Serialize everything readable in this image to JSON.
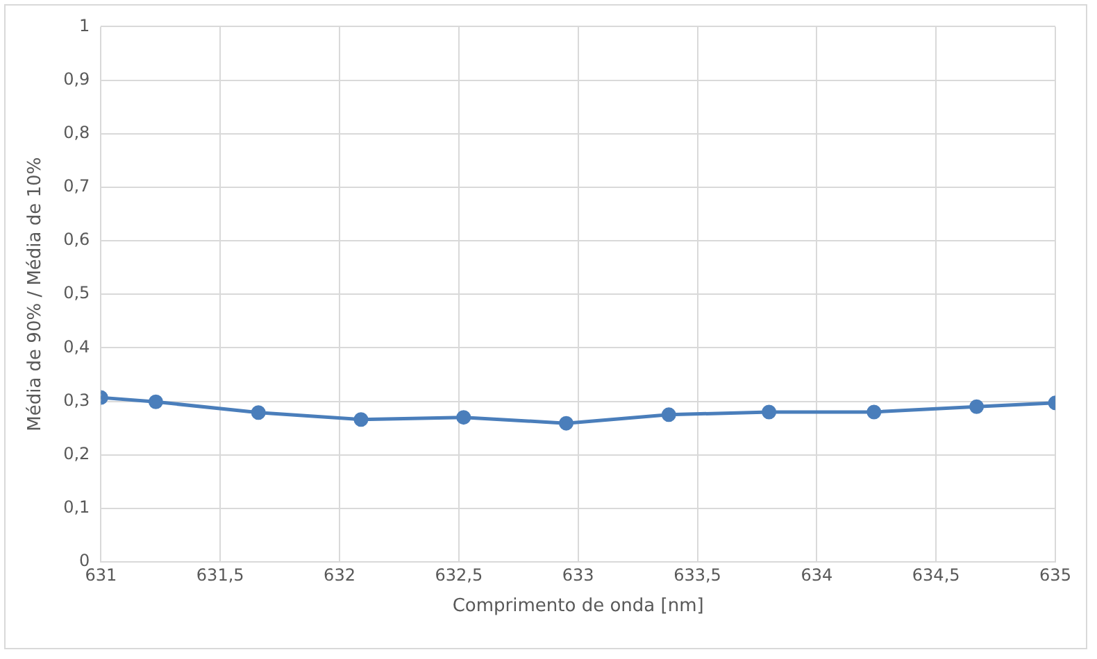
{
  "chart_data": {
    "type": "line",
    "xlabel": "Comprimento de onda [nm]",
    "ylabel": "Média de 90% / Média de 10%",
    "x": [
      631,
      631.23,
      631.66,
      632.09,
      632.52,
      632.95,
      633.38,
      633.8,
      634.24,
      634.67,
      635
    ],
    "series": [
      {
        "color": "#4a7ebb",
        "values": [
          0.307,
          0.299,
          0.279,
          0.266,
          0.27,
          0.259,
          0.275,
          0.28,
          0.28,
          0.29,
          0.297
        ]
      }
    ],
    "xlim": [
      631,
      635
    ],
    "xticks": [
      {
        "value": 631,
        "label": "631"
      },
      {
        "value": 631.5,
        "label": "631,5"
      },
      {
        "value": 632,
        "label": "632"
      },
      {
        "value": 632.5,
        "label": "632,5"
      },
      {
        "value": 633,
        "label": "633"
      },
      {
        "value": 633.5,
        "label": "633,5"
      },
      {
        "value": 634,
        "label": "634"
      },
      {
        "value": 634.5,
        "label": "634,5"
      },
      {
        "value": 635,
        "label": "635"
      }
    ],
    "ylim": [
      0,
      1
    ],
    "yticks": [
      {
        "value": 0,
        "label": "0"
      },
      {
        "value": 0.1,
        "label": "0,1"
      },
      {
        "value": 0.2,
        "label": "0,2"
      },
      {
        "value": 0.3,
        "label": "0,3"
      },
      {
        "value": 0.4,
        "label": "0,4"
      },
      {
        "value": 0.5,
        "label": "0,5"
      },
      {
        "value": 0.6,
        "label": "0,6"
      },
      {
        "value": 0.7,
        "label": "0,7"
      },
      {
        "value": 0.8,
        "label": "0,8"
      },
      {
        "value": 0.9,
        "label": "0,9"
      },
      {
        "value": 1,
        "label": "1"
      }
    ],
    "grid": true,
    "legend": false,
    "marker": "circle",
    "line_style": "solid"
  }
}
